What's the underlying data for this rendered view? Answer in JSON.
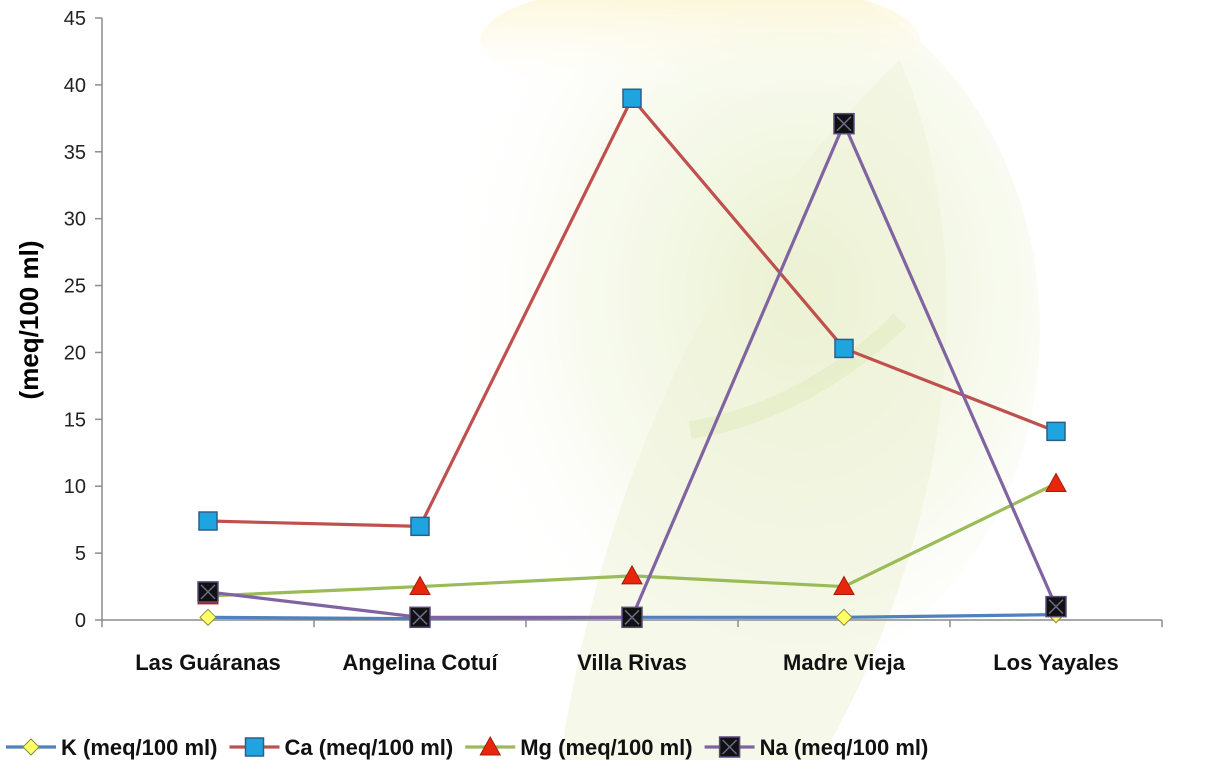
{
  "chart_data": {
    "type": "line",
    "title": "",
    "xlabel": "",
    "ylabel": "(meq/100 ml)",
    "ylim": [
      0,
      45
    ],
    "yticks": [
      0,
      5,
      10,
      15,
      20,
      25,
      30,
      35,
      40,
      45
    ],
    "grid": false,
    "legend_position": "bottom",
    "categories": [
      "Las Guáranas",
      "Angelina Cotuí",
      "Villa Rivas",
      "Madre Vieja",
      "Los Yayales"
    ],
    "series": [
      {
        "name": "K (meq/100  ml)",
        "values": [
          0.2,
          0.1,
          0.2,
          0.2,
          0.4
        ],
        "color": "#4F81BD",
        "marker": "diamond",
        "marker_color": "#FFFF66"
      },
      {
        "name": "Ca (meq/100  ml)",
        "values": [
          7.4,
          7.0,
          39.0,
          20.3,
          14.1
        ],
        "color": "#C0504D",
        "marker": "square",
        "marker_color": "#1EA5E0"
      },
      {
        "name": "Mg (meq/100 ml)",
        "values": [
          1.8,
          2.5,
          3.3,
          2.5,
          10.2
        ],
        "color": "#9BBB59",
        "marker": "triangle",
        "marker_color": "#E8260C"
      },
      {
        "name": "Na (meq/100 ml)",
        "values": [
          2.1,
          0.2,
          0.2,
          37.1,
          1.0
        ],
        "color": "#8064A2",
        "marker": "square-x",
        "marker_color": "#111111"
      }
    ]
  }
}
